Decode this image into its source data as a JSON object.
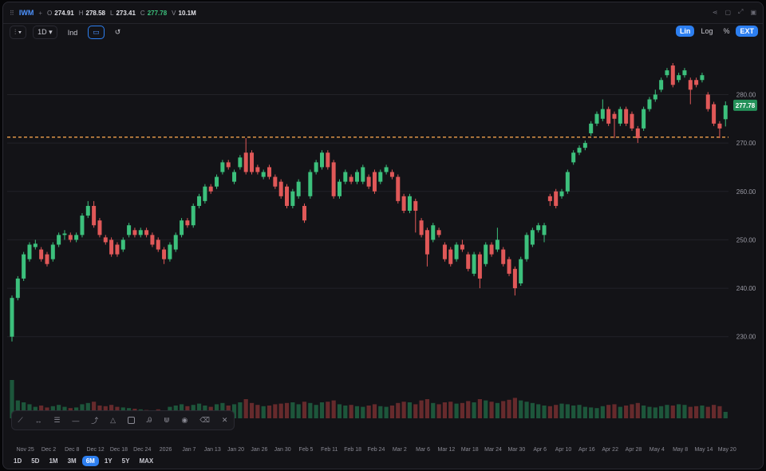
{
  "toolbar": {
    "symbol": "IWM",
    "fields": [
      {
        "key": "O",
        "value": "274.91"
      },
      {
        "key": "H",
        "value": "278.58"
      },
      {
        "key": "L",
        "value": "273.41"
      },
      {
        "key": "C",
        "value": "277.78",
        "up": true
      },
      {
        "key": "V",
        "value": "10.1M"
      }
    ],
    "interval": "1D",
    "indicators": "Ind",
    "scales": [
      {
        "label": "Lin",
        "active": true
      },
      {
        "label": "Log"
      },
      {
        "label": "%"
      },
      {
        "label": "EXT",
        "active": true
      }
    ],
    "ranges": [
      {
        "label": "1D"
      },
      {
        "label": "5D"
      },
      {
        "label": "1M"
      },
      {
        "label": "3M"
      },
      {
        "label": "6M",
        "active": true
      },
      {
        "label": "1Y"
      },
      {
        "label": "5Y"
      },
      {
        "label": "MAX"
      }
    ]
  },
  "chart_data": {
    "type": "candlestick",
    "categories": [
      null,
      null,
      "Nov 25",
      null,
      null,
      null,
      "Dec 2",
      null,
      null,
      null,
      "Dec 8",
      null,
      null,
      null,
      "Dec 12",
      null,
      null,
      null,
      "Dec 18",
      null,
      null,
      null,
      "Dec 24",
      null,
      null,
      null,
      "2026",
      null,
      null,
      null,
      "Jan 7",
      null,
      null,
      null,
      "Jan 13",
      null,
      null,
      null,
      "Jan 20",
      null,
      null,
      null,
      "Jan 26",
      null,
      null,
      null,
      "Jan 30",
      null,
      null,
      null,
      "Feb 5",
      null,
      null,
      null,
      "Feb 11",
      null,
      null,
      null,
      "Feb 18",
      null,
      null,
      null,
      "Feb 24",
      null,
      null,
      null,
      "Mar 2",
      null,
      null,
      null,
      "Mar 6",
      null,
      null,
      null,
      "Mar 12",
      null,
      null,
      null,
      "Mar 18",
      null,
      null,
      null,
      "Mar 24",
      null,
      null,
      null,
      "Mar 30",
      null,
      null,
      null,
      "Apr 6",
      null,
      null,
      null,
      "Apr 10",
      null,
      null,
      null,
      "Apr 16",
      null,
      null,
      null,
      "Apr 22",
      null,
      null,
      null,
      "Apr 28",
      null,
      null,
      null,
      "May 4",
      null,
      null,
      null,
      "May 8",
      null,
      null,
      null,
      "May 14",
      null,
      null,
      null,
      "May 20"
    ],
    "open": [
      230,
      238,
      242,
      246,
      248.5,
      248,
      247,
      246,
      249,
      251,
      251,
      250,
      251,
      255,
      257,
      254,
      250.5,
      250,
      249,
      248,
      251,
      252,
      251,
      252,
      251,
      250,
      248,
      246,
      248,
      251,
      254,
      253,
      257,
      258,
      261,
      261,
      264,
      266,
      262,
      265,
      268,
      268,
      265,
      263,
      265,
      263,
      262,
      261,
      257,
      259,
      257,
      259,
      264,
      265,
      268,
      266,
      259,
      262,
      263,
      262,
      262,
      263,
      264,
      262,
      264,
      264,
      263,
      259,
      256,
      258,
      254,
      252,
      250,
      252,
      249,
      248,
      246,
      249,
      247,
      243,
      247,
      245,
      249,
      248,
      248,
      246,
      244,
      241,
      246,
      249,
      252,
      251,
      259,
      260,
      259,
      260,
      266,
      268,
      269,
      272,
      274,
      275,
      277,
      276,
      274,
      277,
      276,
      273,
      273,
      277,
      279,
      281,
      284,
      286,
      283,
      284,
      283,
      283,
      283,
      280,
      278,
      274,
      274.91
    ],
    "high": [
      238.5,
      242.5,
      247.5,
      249.5,
      250,
      248.5,
      247.5,
      249.5,
      251.5,
      252,
      251.5,
      251.5,
      255.5,
      258,
      258,
      254.5,
      251,
      250.5,
      249.5,
      250.5,
      253.5,
      252.5,
      252.5,
      252.5,
      251.5,
      250.5,
      248.5,
      249.5,
      251.5,
      254.5,
      254.5,
      257.5,
      259.5,
      261.5,
      261.5,
      263.5,
      266.5,
      266.5,
      264.5,
      267.5,
      271,
      268.5,
      265.5,
      264.5,
      265.5,
      263.5,
      262.5,
      261.5,
      260.5,
      262.5,
      257.5,
      264.5,
      266.5,
      268.5,
      268.5,
      266.5,
      262.5,
      264.5,
      263.5,
      264.5,
      265.5,
      263.5,
      264.5,
      264.5,
      265.5,
      264.5,
      263.5,
      259.5,
      259.5,
      258.5,
      254.5,
      252.5,
      253.5,
      252.5,
      249.5,
      248.5,
      249.5,
      250,
      247.5,
      247.5,
      247.5,
      249.5,
      249.5,
      252.5,
      248.5,
      246.5,
      244.5,
      246.5,
      251.5,
      252.5,
      253.5,
      253.5,
      259.5,
      260.5,
      260.5,
      264.5,
      268.5,
      269.5,
      270.5,
      274.5,
      276.5,
      279,
      277.5,
      276.5,
      277.5,
      277.5,
      276.5,
      273.5,
      277.5,
      279.5,
      281,
      283.5,
      285.5,
      286.5,
      284.5,
      285.5,
      283.5,
      283.5,
      284.5,
      280.5,
      278.5,
      274.5,
      278.58
    ],
    "low": [
      229,
      237.5,
      241.5,
      245.5,
      248,
      245.5,
      244.5,
      245.5,
      248.5,
      250,
      249.5,
      249.5,
      250.5,
      254.5,
      252.5,
      250.5,
      249,
      246.5,
      246.5,
      247.5,
      250.5,
      250.5,
      250.5,
      250.5,
      248.5,
      247.5,
      245,
      245.5,
      247.5,
      250.5,
      252.5,
      252.5,
      256.5,
      257.5,
      259.5,
      260.5,
      263.5,
      264.5,
      261.5,
      264.5,
      263.5,
      263.5,
      263.5,
      262.5,
      262.5,
      260.5,
      258.5,
      256.5,
      256.5,
      258.5,
      253.5,
      258.5,
      263.5,
      264.5,
      264.5,
      258.5,
      258.5,
      261.5,
      261.5,
      261.5,
      261.5,
      260.5,
      259.5,
      261.5,
      263.5,
      262.5,
      257.5,
      255.5,
      255.5,
      251.5,
      250.5,
      244.5,
      249.5,
      250.5,
      245.5,
      244.5,
      245.5,
      247.5,
      243.5,
      242.5,
      240,
      244.5,
      246.5,
      247.5,
      244.5,
      242.5,
      238.5,
      240.5,
      245.5,
      248.5,
      251.5,
      249.5,
      257,
      256.5,
      258.5,
      259.5,
      265.5,
      267.5,
      268.5,
      271.5,
      273.5,
      274.5,
      273.5,
      271,
      273.5,
      273.5,
      272.5,
      270,
      272.5,
      276.5,
      278.5,
      280.5,
      283.5,
      281.5,
      282.5,
      283.5,
      278,
      281.5,
      282.5,
      276.5,
      273.5,
      271,
      273.41
    ],
    "close": [
      238,
      242,
      247,
      249,
      249.2,
      246,
      245,
      249,
      251,
      251.3,
      250,
      251,
      255,
      257,
      253,
      251,
      249.5,
      247,
      247,
      250,
      253,
      251,
      252,
      251,
      249,
      248,
      246,
      249,
      251,
      254,
      253,
      257,
      259,
      261,
      260,
      263,
      266,
      265,
      264,
      267,
      264,
      264,
      264,
      264,
      263,
      261,
      259,
      257,
      260,
      262,
      254,
      264,
      266,
      268,
      265,
      259,
      262,
      264,
      262,
      264,
      265,
      261,
      260,
      264,
      265,
      263,
      258,
      256,
      259,
      256,
      251,
      247,
      253,
      251,
      246,
      245,
      249,
      248,
      244,
      247,
      242,
      249,
      247,
      250,
      245,
      243,
      240,
      246,
      251,
      252,
      253,
      253,
      258,
      257,
      260,
      264,
      268,
      269,
      270,
      274,
      276,
      277,
      274,
      275,
      277,
      274,
      273,
      271,
      277,
      279,
      280,
      283,
      285,
      282,
      284,
      285,
      281,
      282,
      284,
      277,
      274,
      273,
      277.78
    ],
    "volume": [
      60,
      28,
      25,
      22,
      18,
      20,
      17,
      19,
      21,
      18,
      16,
      17,
      22,
      24,
      26,
      20,
      19,
      21,
      18,
      17,
      16,
      15,
      14,
      13,
      12,
      14,
      10,
      18,
      20,
      22,
      19,
      21,
      23,
      20,
      18,
      22,
      24,
      20,
      22,
      25,
      30,
      24,
      21,
      19,
      20,
      22,
      23,
      24,
      25,
      22,
      26,
      24,
      21,
      25,
      26,
      28,
      22,
      20,
      21,
      19,
      18,
      20,
      22,
      19,
      18,
      20,
      24,
      26,
      25,
      22,
      28,
      30,
      24,
      22,
      25,
      26,
      23,
      24,
      27,
      25,
      30,
      28,
      26,
      24,
      27,
      29,
      32,
      28,
      26,
      24,
      22,
      20,
      19,
      21,
      23,
      22,
      20,
      21,
      18,
      17,
      16,
      19,
      21,
      22,
      18,
      20,
      22,
      24,
      20,
      18,
      17,
      19,
      21,
      20,
      22,
      21,
      18,
      19,
      20,
      18,
      21,
      19,
      10.1
    ],
    "last_label": "277.78",
    "price_line": 271.2,
    "price_line_color": "#f0a04b",
    "up_color": "#3cc07c",
    "down_color": "#e05858",
    "vol_up_color": "#1d563b",
    "vol_down_color": "#662a2c",
    "ylim": [
      222.7,
      289.8
    ],
    "yticks": [
      {
        "value": 230,
        "label": "230.00"
      },
      {
        "value": 240,
        "label": "240.00"
      },
      {
        "value": 250,
        "label": "250.00"
      },
      {
        "value": 260,
        "label": "260.00"
      },
      {
        "value": 270,
        "label": "270.00"
      },
      {
        "value": 280,
        "label": "280.00"
      }
    ],
    "grid": true
  }
}
